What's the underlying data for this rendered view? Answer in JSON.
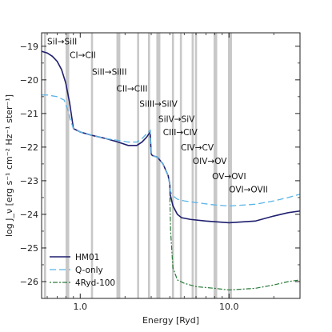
{
  "chart_data": {
    "type": "line",
    "xlabel": "Energy [Ryd]",
    "ylabel": "log J_ν [erg s⁻¹ cm⁻² Hz⁻¹ ster⁻¹]",
    "xscale": "log",
    "xlim": [
      0.55,
      30
    ],
    "ylim": [
      -26.5,
      -18.6
    ],
    "x_ticks": [
      {
        "value": 1.0,
        "label": "1.0"
      },
      {
        "value": 10.0,
        "label": "10.0"
      }
    ],
    "y_ticks": [
      {
        "value": -19,
        "label": "−19"
      },
      {
        "value": -20,
        "label": "−20"
      },
      {
        "value": -21,
        "label": "−21"
      },
      {
        "value": -22,
        "label": "−22"
      },
      {
        "value": -23,
        "label": "−23"
      },
      {
        "value": -24,
        "label": "−24"
      },
      {
        "value": -25,
        "label": "−25"
      },
      {
        "value": -26,
        "label": "−26"
      }
    ],
    "grid": false,
    "legend_position": "bottom-left",
    "vlines": [
      0.58,
      0.81,
      0.83,
      1.2,
      1.78,
      1.83,
      2.45,
      2.9,
      3.3,
      3.4,
      4.2,
      4.75,
      5.7,
      6.0,
      8.0,
      8.2,
      10.0,
      10.3
    ],
    "annotations": [
      {
        "text": "SiI→SiII",
        "x": 0.6,
        "y": -18.95
      },
      {
        "text": "CI→CII",
        "x": 0.85,
        "y": -19.35
      },
      {
        "text": "SiII→SiIII",
        "x": 1.2,
        "y": -19.85
      },
      {
        "text": "CII→CIII",
        "x": 1.75,
        "y": -20.35
      },
      {
        "text": "SiIII→SiIV",
        "x": 2.5,
        "y": -20.8
      },
      {
        "text": "SiIV→SiV",
        "x": 3.35,
        "y": -21.25
      },
      {
        "text": "CIII→CIV",
        "x": 3.6,
        "y": -21.65
      },
      {
        "text": "CIV→CV",
        "x": 4.75,
        "y": -22.1
      },
      {
        "text": "OIV→OV",
        "x": 5.7,
        "y": -22.5
      },
      {
        "text": "OV→OVI",
        "x": 7.7,
        "y": -22.95
      },
      {
        "text": "OVI→OVII",
        "x": 10.0,
        "y": -23.35
      }
    ],
    "series": [
      {
        "name": "HM01",
        "color": "#1f1f6e",
        "dash": "solid",
        "width": 1.6,
        "x": [
          0.55,
          0.6,
          0.65,
          0.7,
          0.75,
          0.8,
          0.85,
          0.9,
          1.0,
          1.2,
          1.5,
          1.8,
          2.1,
          2.4,
          2.6,
          2.8,
          2.95,
          3.0,
          3.05,
          3.3,
          3.6,
          3.9,
          4.0,
          4.02,
          4.2,
          4.5,
          4.8,
          5.5,
          7.0,
          10.0,
          15.0,
          20.0,
          25.0,
          30.0
        ],
        "y": [
          -19.15,
          -19.2,
          -19.3,
          -19.45,
          -19.7,
          -20.1,
          -20.7,
          -21.45,
          -21.55,
          -21.65,
          -21.75,
          -21.85,
          -21.95,
          -21.95,
          -21.85,
          -21.7,
          -21.55,
          -22.2,
          -22.25,
          -22.3,
          -22.5,
          -22.85,
          -23.1,
          -23.4,
          -23.75,
          -24.0,
          -24.1,
          -24.15,
          -24.2,
          -24.25,
          -24.2,
          -24.05,
          -23.95,
          -23.9
        ]
      },
      {
        "name": "Q-only",
        "color": "#5ab4e8",
        "dash": "8,4",
        "width": 1.3,
        "x": [
          0.55,
          0.6,
          0.7,
          0.78,
          0.82,
          0.86,
          0.9,
          1.0,
          1.2,
          1.5,
          1.8,
          2.1,
          2.4,
          2.6,
          2.8,
          2.95,
          3.0,
          3.05,
          3.3,
          3.6,
          3.9,
          4.0,
          4.02,
          4.2,
          4.5,
          5.0,
          6.0,
          8.0,
          10.0,
          15.0,
          20.0,
          25.0,
          30.0
        ],
        "y": [
          -20.45,
          -20.45,
          -20.5,
          -20.6,
          -20.85,
          -21.2,
          -21.45,
          -21.55,
          -21.65,
          -21.75,
          -21.8,
          -21.85,
          -21.85,
          -21.75,
          -21.6,
          -21.5,
          -22.2,
          -22.25,
          -22.3,
          -22.5,
          -22.85,
          -23.1,
          -23.3,
          -23.45,
          -23.55,
          -23.6,
          -23.65,
          -23.72,
          -23.75,
          -23.7,
          -23.6,
          -23.5,
          -23.4
        ]
      },
      {
        "name": "4Ryd-100",
        "color": "#2d7a3a",
        "dash": "2,2,6,2",
        "width": 1.2,
        "x": [
          4.0,
          4.05,
          4.2,
          4.5,
          5.0,
          6.0,
          8.0,
          10.0,
          15.0,
          20.0,
          25.0,
          30.0
        ],
        "y": [
          -23.4,
          -24.5,
          -25.6,
          -25.95,
          -26.05,
          -26.15,
          -26.2,
          -26.25,
          -26.2,
          -26.1,
          -26.0,
          -25.95
        ]
      }
    ]
  }
}
